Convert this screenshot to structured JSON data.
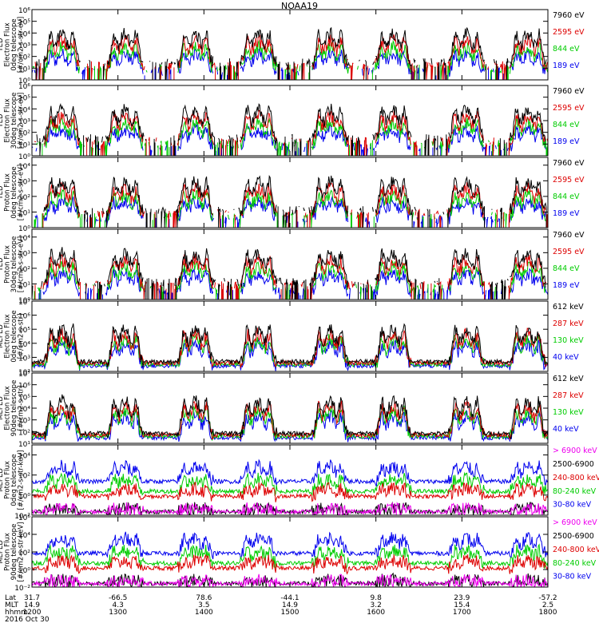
{
  "title": "NOAA19",
  "panels": [
    {
      "ylabel": [
        "TED",
        "Electron Flux",
        "0deg telescope",
        "[#/cm2-s-str-eV]"
      ],
      "yticks": [
        [
          "10⁶",
          6
        ],
        [
          "10⁵",
          5
        ],
        [
          "10⁴",
          4
        ],
        [
          "10³",
          3
        ],
        [
          "10²",
          2
        ],
        [
          "10¹",
          1
        ],
        [
          "10⁰",
          0
        ]
      ],
      "ylim": [
        0,
        6
      ],
      "legend": [
        {
          "label": "7960 eV",
          "color": "#000000"
        },
        {
          "label": "2595 eV",
          "color": "#dd0000"
        },
        {
          "label": "844 eV",
          "color": "#00cc00"
        },
        {
          "label": "189 eV",
          "color": "#0000ee"
        }
      ]
    },
    {
      "ylabel": [
        "TED",
        "Electron Flux",
        "30deg telescope",
        "[#/cm2-s-str-eV]"
      ],
      "yticks": [
        [
          "10⁶",
          6
        ],
        [
          "10⁵",
          5
        ],
        [
          "10⁴",
          4
        ],
        [
          "10³",
          3
        ],
        [
          "10²",
          2
        ],
        [
          "10¹",
          1
        ],
        [
          "10⁰",
          0
        ]
      ],
      "ylim": [
        0,
        6
      ],
      "legend": [
        {
          "label": "7960 eV",
          "color": "#000000"
        },
        {
          "label": "2595 eV",
          "color": "#dd0000"
        },
        {
          "label": "844 eV",
          "color": "#00cc00"
        },
        {
          "label": "189 eV",
          "color": "#0000ee"
        }
      ]
    },
    {
      "ylabel": [
        "TED",
        "Proton Flux",
        "0deg telescope",
        "[#/cm2-s-str-eV]"
      ],
      "yticks": [
        [
          "10⁴",
          4
        ],
        [
          "10³",
          3
        ],
        [
          "10²",
          2
        ],
        [
          "10¹",
          1
        ],
        [
          "10⁰",
          0
        ]
      ],
      "ylim": [
        0,
        4.5
      ],
      "legend": [
        {
          "label": "7960 eV",
          "color": "#000000"
        },
        {
          "label": "2595 eV",
          "color": "#dd0000"
        },
        {
          "label": "844 eV",
          "color": "#00cc00"
        },
        {
          "label": "189 eV",
          "color": "#0000ee"
        }
      ]
    },
    {
      "ylabel": [
        "TED",
        "Proton Flux",
        "30deg telescope",
        "[#/cm2-s-str-eV]"
      ],
      "yticks": [
        [
          "10⁴",
          4
        ],
        [
          "10³",
          3
        ],
        [
          "10²",
          2
        ],
        [
          "10¹",
          1
        ],
        [
          "10⁰",
          0
        ]
      ],
      "ylim": [
        0,
        4.5
      ],
      "legend": [
        {
          "label": "7960 eV",
          "color": "#000000"
        },
        {
          "label": "2595 eV",
          "color": "#dd0000"
        },
        {
          "label": "844 eV",
          "color": "#00cc00"
        },
        {
          "label": "189 eV",
          "color": "#0000ee"
        }
      ]
    },
    {
      "ylabel": [
        "MEPED",
        "Electron Flux",
        "0deg telescope",
        "[#/cm2-s-str]"
      ],
      "yticks": [
        [
          "10⁷",
          7
        ],
        [
          "10⁶",
          6
        ],
        [
          "10⁵",
          5
        ],
        [
          "10⁴",
          4
        ],
        [
          "10³",
          3
        ],
        [
          "10²",
          2
        ]
      ],
      "ylim": [
        2,
        7
      ],
      "legend": [
        {
          "label": "612 keV",
          "color": "#000000"
        },
        {
          "label": "287 keV",
          "color": "#dd0000"
        },
        {
          "label": "130 keV",
          "color": "#00cc00"
        },
        {
          "label": "40 keV",
          "color": "#0000ee"
        }
      ]
    },
    {
      "ylabel": [
        "MEPED",
        "Electron Flux",
        "90deg telescope",
        "[#/cm2-s-str]"
      ],
      "yticks": [
        [
          "10⁷",
          7
        ],
        [
          "10⁶",
          6
        ],
        [
          "10⁵",
          5
        ],
        [
          "10⁴",
          4
        ],
        [
          "10³",
          3
        ],
        [
          "10²",
          2
        ],
        [
          "10¹",
          1
        ]
      ],
      "ylim": [
        1,
        7
      ],
      "legend": [
        {
          "label": "612 keV",
          "color": "#000000"
        },
        {
          "label": "287 keV",
          "color": "#dd0000"
        },
        {
          "label": "130 keV",
          "color": "#00cc00"
        },
        {
          "label": "40 keV",
          "color": "#0000ee"
        }
      ]
    },
    {
      "ylabel": [
        "MEPED",
        "Proton Flux",
        "0deg telescope",
        "[#/cm2-s-str-keV]"
      ],
      "yticks": [
        [
          "10⁴",
          4
        ],
        [
          "10²",
          2
        ],
        [
          "10⁰",
          0
        ],
        [
          "10⁻²",
          -2
        ]
      ],
      "ylim": [
        -2,
        5
      ],
      "legend": [
        {
          "label": "> 6900 keV",
          "color": "#ee00ee"
        },
        {
          "label": "2500-6900",
          "color": "#000000"
        },
        {
          "label": "240-800 keV",
          "color": "#dd0000"
        },
        {
          "label": "80-240 keV",
          "color": "#00cc00"
        },
        {
          "label": "30-80 keV",
          "color": "#0000ee"
        }
      ]
    },
    {
      "ylabel": [
        "MEPED",
        "Proton Flux",
        "90deg telescope",
        "[#/cm2-s-str-keV]"
      ],
      "yticks": [
        [
          "10⁶",
          6
        ],
        [
          "10⁴",
          4
        ],
        [
          "10²",
          2
        ],
        [
          "10⁰",
          0
        ],
        [
          "10⁻²",
          -2
        ]
      ],
      "ylim": [
        -2,
        6
      ],
      "legend": [
        {
          "label": "> 6900 keV",
          "color": "#ee00ee"
        },
        {
          "label": "2500-6900",
          "color": "#000000"
        },
        {
          "label": "240-800 keV",
          "color": "#dd0000"
        },
        {
          "label": "80-240 keV",
          "color": "#00cc00"
        },
        {
          "label": "30-80 keV",
          "color": "#0000ee"
        }
      ]
    }
  ],
  "xaxis": {
    "row_labels": [
      "Lat",
      "MLT",
      "hhmm",
      "2016 Oct 30"
    ],
    "ticks": [
      {
        "lat": "31.7",
        "mlt": "14.9",
        "hhmm": "1200"
      },
      {
        "lat": "-66.5",
        "mlt": "4.3",
        "hhmm": "1300"
      },
      {
        "lat": "78.6",
        "mlt": "3.5",
        "hhmm": "1400"
      },
      {
        "lat": "-44.1",
        "mlt": "14.9",
        "hhmm": "1500"
      },
      {
        "lat": "9.8",
        "mlt": "3.2",
        "hhmm": "1600"
      },
      {
        "lat": "23.9",
        "mlt": "15.4",
        "hhmm": "1700"
      },
      {
        "lat": "-57.2",
        "mlt": "2.5",
        "hhmm": "1800"
      }
    ]
  },
  "chart_data": {
    "type": "line",
    "title": "NOAA19",
    "x_unit": "UT hour (hhmm)",
    "x_range": [
      "1200",
      "1800"
    ],
    "pass_centers_hhmm": [
      "1221",
      "1305",
      "1354",
      "1438",
      "1528",
      "1612",
      "1703",
      "1746"
    ],
    "note_scale": "log10 flux per channel, each panel independent y-range",
    "log_scale": true
  }
}
